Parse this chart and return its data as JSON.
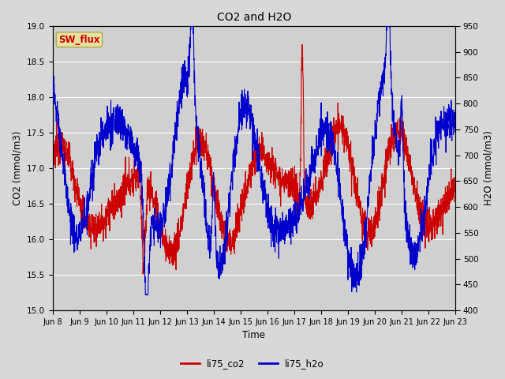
{
  "title": "CO2 and H2O",
  "xlabel": "Time",
  "ylabel_left": "CO2 (mmol/m3)",
  "ylabel_right": "H2O (mmol/m3)",
  "ylim_left": [
    15.0,
    19.0
  ],
  "ylim_right": [
    400,
    950
  ],
  "x_tick_labels": [
    "Jun 8",
    "Jun 9",
    "Jun 10",
    "Jun 11",
    "Jun 12",
    "Jun 13",
    "Jun 14",
    "Jun 15",
    "Jun 16",
    "Jun 17",
    "Jun 18",
    "Jun 19",
    "Jun 20",
    "Jun 21",
    "Jun 22",
    "Jun 23"
  ],
  "color_co2": "#cc0000",
  "color_h2o": "#0000cc",
  "legend_labels": [
    "li75_co2",
    "li75_h2o"
  ],
  "annotation_text": "SW_flux",
  "annotation_color": "#cc0000",
  "annotation_bg": "#e8e0a0",
  "fig_bg": "#d8d8d8",
  "plot_bg": "#d0d0d0",
  "grid_color": "#ffffff",
  "yticks_left": [
    15.0,
    15.5,
    16.0,
    16.5,
    17.0,
    17.5,
    18.0,
    18.5,
    19.0
  ],
  "yticks_right": [
    400,
    450,
    500,
    550,
    600,
    650,
    700,
    750,
    800,
    850,
    900,
    950
  ],
  "n_days": 15,
  "figsize": [
    6.4,
    4.8
  ],
  "dpi": 100
}
